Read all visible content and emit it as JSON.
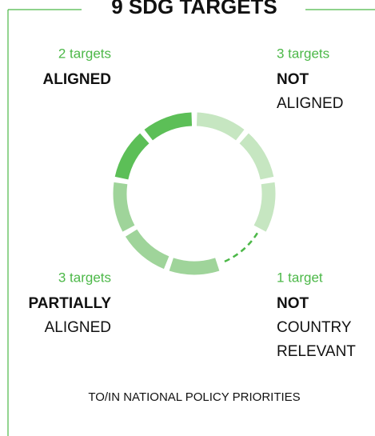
{
  "chart_data": {
    "type": "donut",
    "title": "9 SDG TARGETS",
    "segments": [
      {
        "value": 3,
        "value_label": "3 targets",
        "lines": [
          "NOT",
          "ALIGNED"
        ],
        "bold_lines": 1,
        "color": "#c6e6c1",
        "dashed": false
      },
      {
        "value": 1,
        "value_label": "1 target",
        "lines": [
          "NOT",
          "COUNTRY",
          "RELEVANT"
        ],
        "bold_lines": 1,
        "color": "#4cb848",
        "dashed": true
      },
      {
        "value": 3,
        "value_label": "3 targets",
        "lines": [
          "PARTIALLY",
          "ALIGNED"
        ],
        "bold_lines": 1,
        "color": "#9fd49a",
        "dashed": false
      },
      {
        "value": 2,
        "value_label": "2 targets",
        "lines": [
          "ALIGNED"
        ],
        "bold_lines": 1,
        "color": "#5cbf57",
        "dashed": false
      }
    ],
    "footer": "TO/IN NATIONAL POLICY PRIORITIES"
  }
}
